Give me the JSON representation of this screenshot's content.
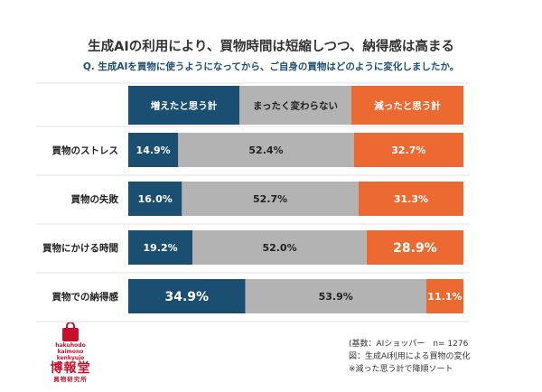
{
  "title": "生成AIの利用により、買物時間は短縮しつつ、納得感は高まる",
  "subtitle": "Q. 生成AIを買物に使うようになってから、ご自身の買物はどのように変化しましたか。",
  "chart_data": {
    "type": "bar",
    "stacked": "100%",
    "orientation": "horizontal",
    "categories": [
      "買物のストレス",
      "買物の失敗",
      "買物にかける時間",
      "買物での納得感"
    ],
    "series": [
      {
        "name": "増えたと思う計",
        "color": "#1b4f72",
        "values": [
          14.9,
          16.0,
          19.2,
          34.9
        ]
      },
      {
        "name": "まったく変わらない",
        "color": "#b3b3b3",
        "values": [
          52.4,
          52.7,
          52.0,
          53.9
        ]
      },
      {
        "name": "減ったと思う計",
        "color": "#ec6a32",
        "values": [
          32.7,
          31.3,
          28.9,
          11.1
        ]
      }
    ],
    "data_labels": [
      [
        "14.9%",
        "52.4%",
        "32.7%"
      ],
      [
        "16.0%",
        "52.7%",
        "31.3%"
      ],
      [
        "19.2%",
        "52.0%",
        "28.9%"
      ],
      [
        "34.9%",
        "53.9%",
        "11.1%"
      ]
    ],
    "legend": "top",
    "ylim": [
      0,
      100
    ]
  },
  "footer": {
    "line1": "(基数：AIショッパー　n= 1276",
    "line2": "図：生成AI利用による買物の変化",
    "line3": "※減った思う計で降順ソート"
  },
  "logo": {
    "latin1": "hakuhodo",
    "latin2": "kaimono",
    "latin3": "kenkyujo",
    "jp_main": "博報堂",
    "jp_sub": "買物研究所"
  }
}
